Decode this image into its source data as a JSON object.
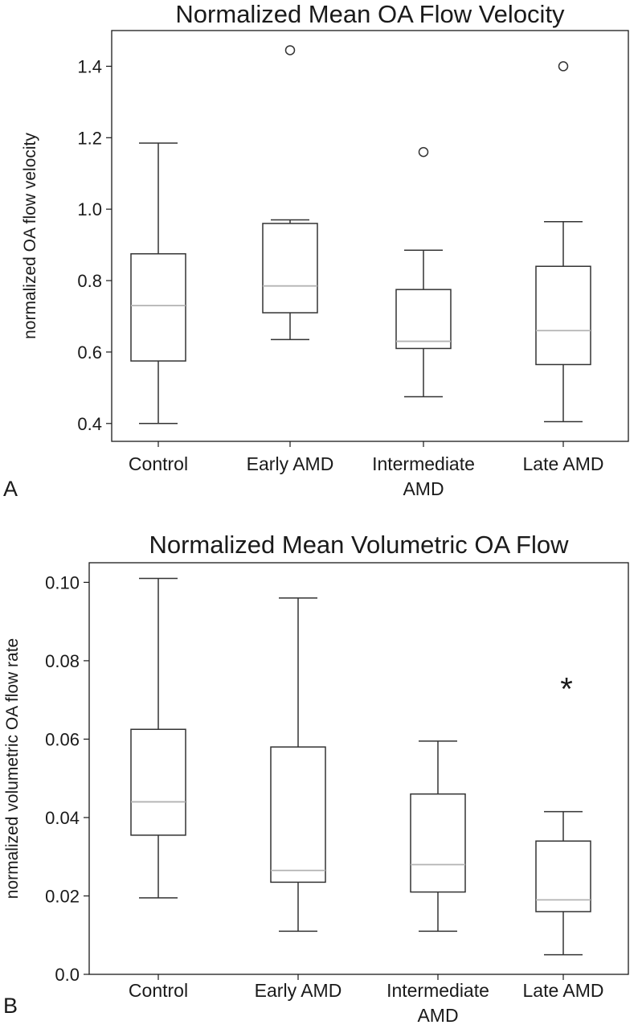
{
  "chart_data": [
    {
      "type": "box",
      "panel_label": "A",
      "title": "Normalized Mean OA Flow Velocity",
      "xlabel": "",
      "ylabel": "normalized OA flow velocity",
      "ylim": [
        0.35,
        1.5
      ],
      "yticks": [
        "0.4",
        "0.6",
        "0.8",
        "1.0",
        "1.2",
        "1.4"
      ],
      "categories": [
        {
          "lines": [
            "Control"
          ]
        },
        {
          "lines": [
            "Early AMD"
          ]
        },
        {
          "lines": [
            "Intermediate",
            "AMD"
          ]
        },
        {
          "lines": [
            "Late AMD"
          ]
        }
      ],
      "boxes": [
        {
          "whisker_low": 0.4,
          "q1": 0.575,
          "median": 0.73,
          "q3": 0.875,
          "whisker_high": 1.185,
          "outliers": []
        },
        {
          "whisker_low": 0.635,
          "q1": 0.71,
          "median": 0.785,
          "q3": 0.96,
          "whisker_high": 0.97,
          "outliers": [
            1.445
          ]
        },
        {
          "whisker_low": 0.475,
          "q1": 0.61,
          "median": 0.63,
          "q3": 0.775,
          "whisker_high": 0.885,
          "outliers": [
            1.16
          ]
        },
        {
          "whisker_low": 0.405,
          "q1": 0.565,
          "median": 0.66,
          "q3": 0.84,
          "whisker_high": 0.965,
          "outliers": [
            1.4
          ]
        }
      ],
      "annotations": [],
      "colors": {
        "box": "#333333",
        "median": "#b3b3b3"
      }
    },
    {
      "type": "box",
      "panel_label": "B",
      "title": "Normalized Mean Volumetric OA Flow",
      "xlabel": "",
      "ylabel": "normalized volumetric OA flow rate",
      "ylim": [
        0.0,
        0.105
      ],
      "yticks": [
        "0.0",
        "0.02",
        "0.04",
        "0.06",
        "0.08",
        "0.10"
      ],
      "categories": [
        {
          "lines": [
            "Control"
          ]
        },
        {
          "lines": [
            "Early AMD"
          ]
        },
        {
          "lines": [
            "Intermediate",
            "AMD"
          ]
        },
        {
          "lines": [
            "Late AMD"
          ]
        }
      ],
      "boxes": [
        {
          "whisker_low": 0.0195,
          "q1": 0.0355,
          "median": 0.044,
          "q3": 0.0625,
          "whisker_high": 0.101,
          "outliers": []
        },
        {
          "whisker_low": 0.011,
          "q1": 0.0235,
          "median": 0.0265,
          "q3": 0.058,
          "whisker_high": 0.096,
          "outliers": []
        },
        {
          "whisker_low": 0.011,
          "q1": 0.021,
          "median": 0.028,
          "q3": 0.046,
          "whisker_high": 0.0595,
          "outliers": []
        },
        {
          "whisker_low": 0.005,
          "q1": 0.016,
          "median": 0.019,
          "q3": 0.034,
          "whisker_high": 0.0415,
          "outliers": []
        }
      ],
      "annotations": [
        {
          "text": "*",
          "category_index": 3,
          "y": 0.0745
        }
      ],
      "colors": {
        "box": "#333333",
        "median": "#b3b3b3"
      }
    }
  ]
}
